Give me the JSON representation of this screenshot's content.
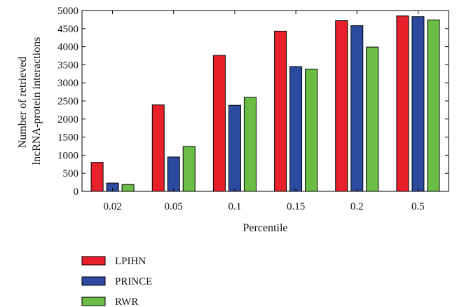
{
  "chart_data": {
    "type": "bar",
    "categories": [
      "0.02",
      "0.05",
      "0.1",
      "0.15",
      "0.2",
      "0.5"
    ],
    "series": [
      {
        "name": "LPIHN",
        "values": [
          800,
          2390,
          3760,
          4430,
          4720,
          4850
        ],
        "color": "#e8202a"
      },
      {
        "name": "PRINCE",
        "values": [
          230,
          950,
          2380,
          3450,
          4580,
          4830
        ],
        "color": "#2c4aa0"
      },
      {
        "name": "RWR",
        "values": [
          190,
          1240,
          2600,
          3380,
          3990,
          4740
        ],
        "color": "#6cbd45"
      }
    ],
    "xlabel": "Percentile",
    "ylabel_lines": [
      "Number of retrieved",
      "lncRNA-protein interactions"
    ],
    "ylim": [
      0,
      5000
    ],
    "yticks": [
      0,
      500,
      1000,
      1500,
      2000,
      2500,
      3000,
      3500,
      4000,
      4500,
      5000
    ],
    "grid": false,
    "legend_position": "bottom-left"
  }
}
